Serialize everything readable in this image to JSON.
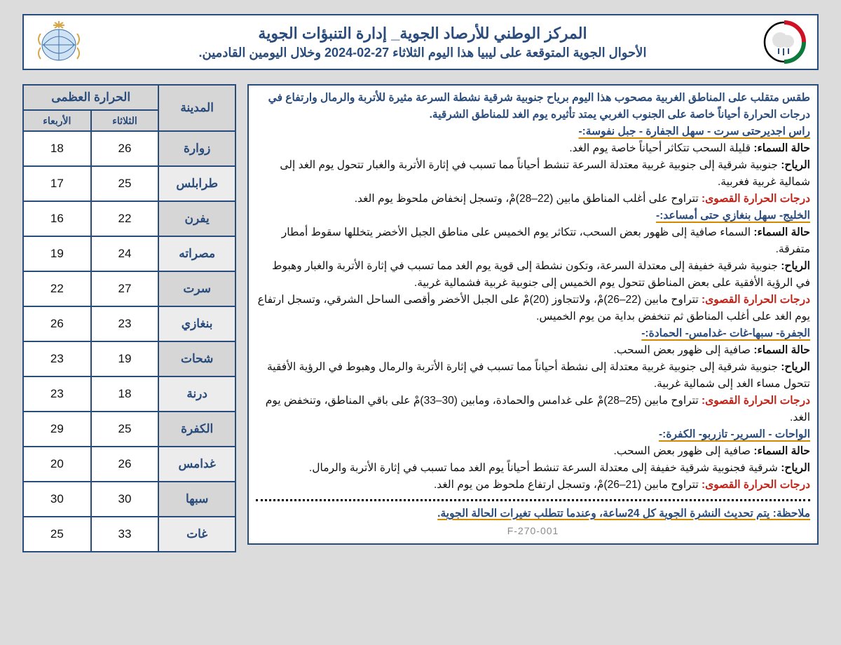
{
  "header": {
    "line1": "المركز الوطني للأرصاد الجوية_ إدارة التنبؤات الجوية",
    "line2": "الأحوال الجوية المتوقعة على ليبيا هذا اليوم الثلاثاء  27-02-2024 وخلال اليومين القادمين."
  },
  "intro": "طقس متقلب على المناطق الغربية مصحوب هذا اليوم برياح جنوبية شرقية نشطة السرعة مثيرة للأتربة والرمال وارتفاع في درجات الحرارة أحياناً خاصة على الجنوب الغربي يمتد تأثيره يوم الغد للمناطق الشرقية.",
  "labels": {
    "sky": "حالة السماء:",
    "wind": "الرياح:",
    "max": "درجات الحرارة القصوى:"
  },
  "r1": {
    "head": "راس اجديرحتى سرت - سهل الجفارة - جبل نفوسة:-",
    "sky": "قليلة السحب تتكاثر أحياناً خاصة يوم الغد.",
    "wind": "جنوبية شرقية إلى جنوبية غربية معتدلة السرعة تنشط أحياناً مما تسبب في إثارة الأتربة والغبار تتحول يوم الغد إلى شمالية غربية فغربية.",
    "max": "تتراوح على أغلب المناطق مابين (22–28)مْ، وتسجل إنخفاض ملحوظ يوم الغد."
  },
  "r2": {
    "head": "الخليج- سهل بنغازي حتى أمساعد:-",
    "sky": "السماء صافية إلى ظهور بعض السحب،  تتكاثر يوم الخميس على مناطق الجبل الأخضر يتخللها سقوط أمطار متفرقة.",
    "wind": "جنوبية شرقية خفيفة إلى معتدلة السرعة، وتكون نشطة إلى قوية يوم الغد مما تسبب في إثارة الأتربة والغبار وهبوط في الرؤية الأفقية على بعض المناطق تتحول يوم الخميس إلى جنوبية غربية فشمالية غربية.",
    "max": "تتراوح مابين (22–26)مْ، ولاتتجاوز (20)مْ على الجبل الأخضر وأقصى الساحل الشرقي، وتسجل ارتفاع يوم الغد على أغلب المناطق ثم تنخفض بداية من يوم الخميس."
  },
  "r3": {
    "head": "الجفرة- سبها-غات -غدامس- الحمادة:-",
    "sky": "صافية إلى ظهور بعض السحب.",
    "wind": "جنوبية شرقية إلى جنوبية غربية معتدلة إلى نشطة أحياناً مما تسبب في إثارة الأتربة والرمال وهبوط في الرؤية الأفقية تتحول مساء الغد إلى شمالية غربية.",
    "max": "تتراوح مابين (25–28)مْ على غدامس والحمادة، ومابين (30–33)مْ على باقي المناطق، وتنخفض يوم الغد."
  },
  "r4": {
    "head": "الواحات - السرير- تازربو- الكفرة:-",
    "sky": "صافية إلى ظهور بعض السحب.",
    "wind": "شرقية فجنوبية شرقية خفيفة إلى معتدلة السرعة تنشط أحياناً يوم الغد مما تسبب في إثارة الأتربة والرمال.",
    "max": "تتراوح مابين (21–26)مْ، وتسجل ارتفاع ملحوظ من يوم الغد."
  },
  "note": "ملاحظة: يتم تحديث النشرة الجوية كل 24ساعة، وعندما تتطلب تغيرات الحالة الجوية.",
  "form_code": "F-270-001",
  "table": {
    "max_header": "الحرارة العظمى",
    "city_header": "المدينة",
    "day1": "الثلاثاء",
    "day2": "الأربعاء",
    "rows": [
      {
        "city": "زوارة",
        "d1": "26",
        "d2": "18"
      },
      {
        "city": "طرابلس",
        "d1": "25",
        "d2": "17"
      },
      {
        "city": "يفرن",
        "d1": "22",
        "d2": "16"
      },
      {
        "city": "مصراته",
        "d1": "24",
        "d2": "19"
      },
      {
        "city": "سرت",
        "d1": "27",
        "d2": "22"
      },
      {
        "city": "بنغازي",
        "d1": "23",
        "d2": "26"
      },
      {
        "city": "شحات",
        "d1": "19",
        "d2": "23"
      },
      {
        "city": "درنة",
        "d1": "18",
        "d2": "23"
      },
      {
        "city": "الكفرة",
        "d1": "25",
        "d2": "29"
      },
      {
        "city": "غدامس",
        "d1": "26",
        "d2": "20"
      },
      {
        "city": "سبها",
        "d1": "30",
        "d2": "30"
      },
      {
        "city": "غات",
        "d1": "33",
        "d2": "25"
      }
    ]
  }
}
